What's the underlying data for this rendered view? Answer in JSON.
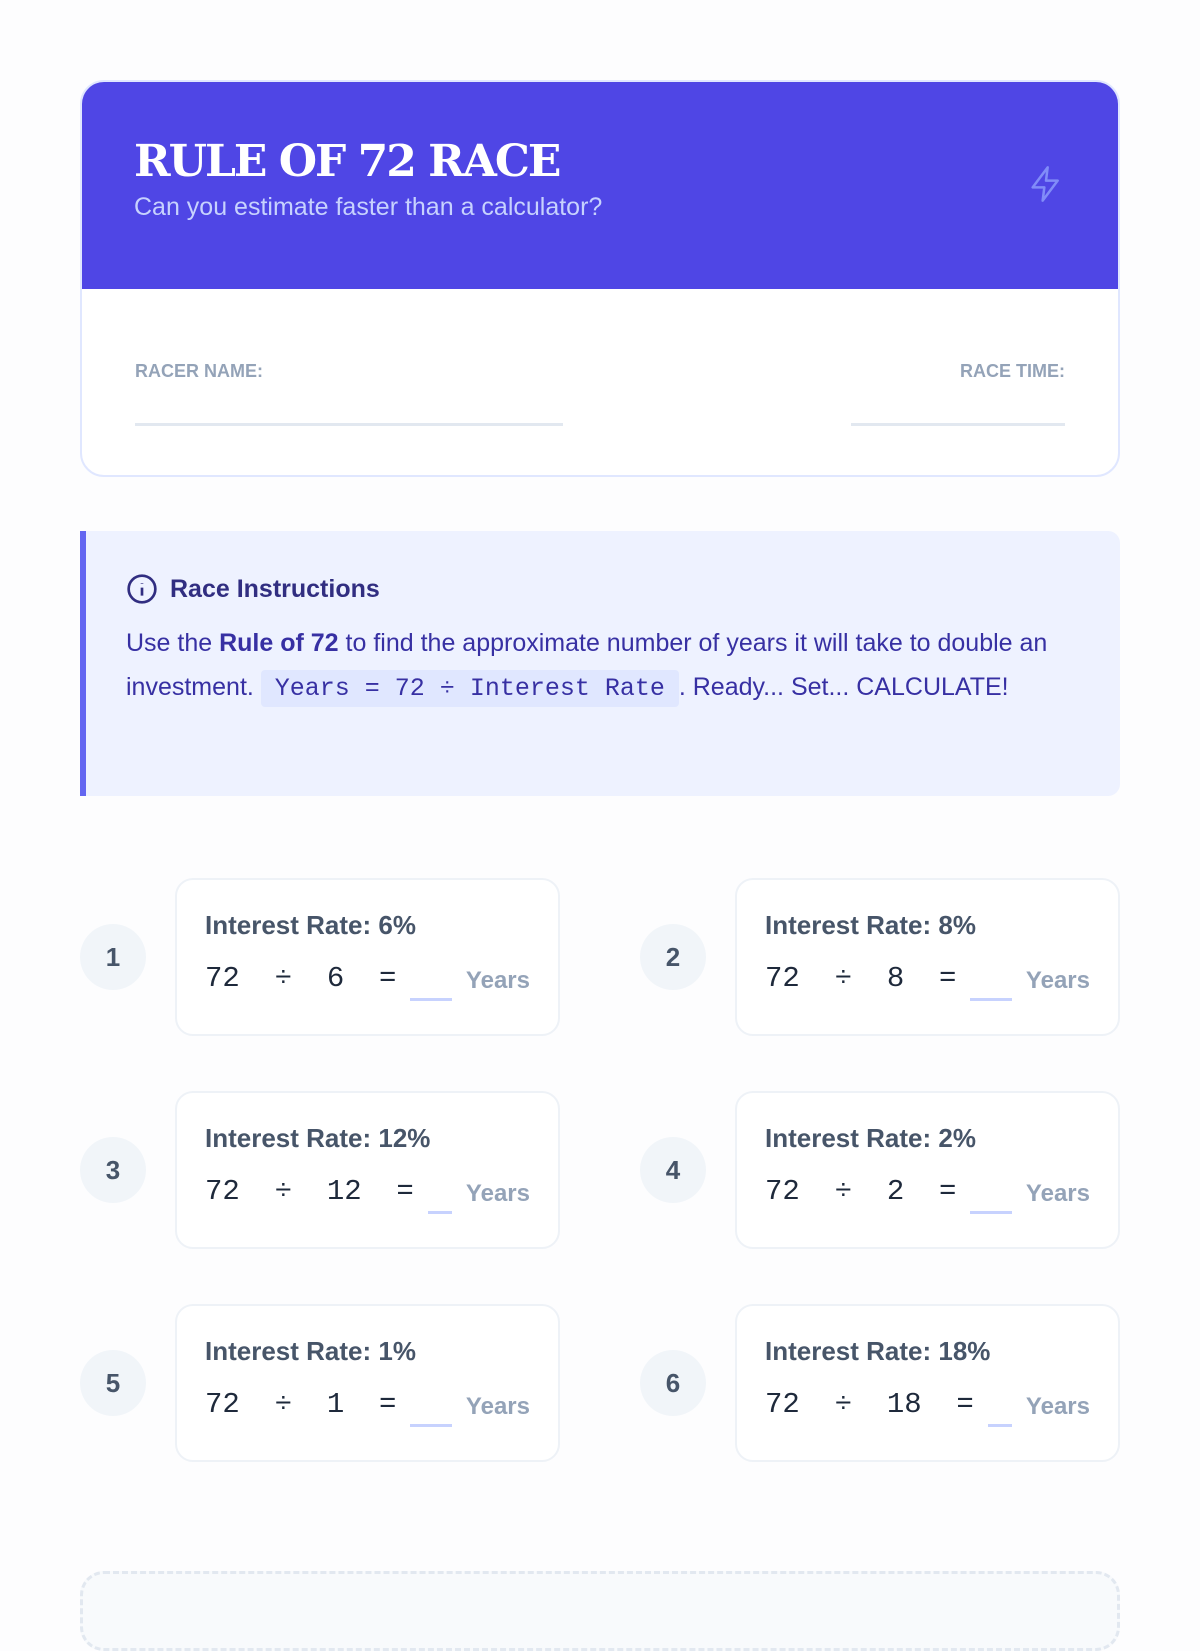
{
  "header": {
    "title": "RULE OF 72 RACE",
    "subtitle": "Can you estimate faster than a calculator?",
    "icon": "lightning-bolt-icon"
  },
  "fields": {
    "racer_name_label": "RACER NAME:",
    "race_time_label": "RACE TIME:"
  },
  "instructions": {
    "title": "Race Instructions",
    "text_before": "Use the ",
    "bold": "Rule of 72",
    "text_mid": " to find the approximate number of years it will take to double an investment. ",
    "formula": "Years = 72 ÷ Interest Rate",
    "text_after": ". Ready... Set... CALCULATE!"
  },
  "problems": [
    {
      "number": "1",
      "title": "Interest Rate: 6%",
      "expression": "72 ÷ 6 =",
      "unit": "Years"
    },
    {
      "number": "2",
      "title": "Interest Rate: 8%",
      "expression": "72 ÷ 8 =",
      "unit": "Years"
    },
    {
      "number": "3",
      "title": "Interest Rate: 12%",
      "expression": "72 ÷ 12 =",
      "unit": "Years"
    },
    {
      "number": "4",
      "title": "Interest Rate: 2%",
      "expression": "72 ÷ 2 =",
      "unit": "Years"
    },
    {
      "number": "5",
      "title": "Interest Rate: 1%",
      "expression": "72 ÷ 1 =",
      "unit": "Years"
    },
    {
      "number": "6",
      "title": "Interest Rate: 18%",
      "expression": "72 ÷ 18 =",
      "unit": "Years"
    }
  ],
  "colors": {
    "primary": "#4f46e5",
    "instructions_bg": "#eef2ff",
    "accent": "#6366f1"
  }
}
